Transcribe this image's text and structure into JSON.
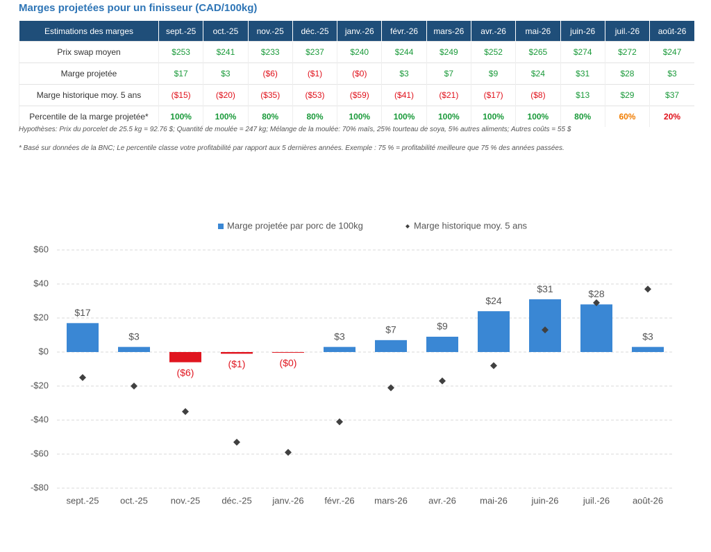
{
  "title": "Marges projetées pour un finisseur (CAD/100kg)",
  "table": {
    "header": [
      "Estimations des marges",
      "sept.-25",
      "oct.-25",
      "nov.-25",
      "déc.-25",
      "janv.-26",
      "févr.-26",
      "mars-26",
      "avr.-26",
      "mai-26",
      "juin-26",
      "juil.-26",
      "août-26"
    ],
    "rows": [
      {
        "label": "Prix swap moyen",
        "cells": [
          "$253",
          "$241",
          "$233",
          "$237",
          "$240",
          "$244",
          "$249",
          "$252",
          "$265",
          "$274",
          "$272",
          "$247"
        ],
        "colors": [
          "#1a9a3a",
          "#1a9a3a",
          "#1a9a3a",
          "#1a9a3a",
          "#1a9a3a",
          "#1a9a3a",
          "#1a9a3a",
          "#1a9a3a",
          "#1a9a3a",
          "#1a9a3a",
          "#1a9a3a",
          "#1a9a3a"
        ]
      },
      {
        "label": "Marge projetée",
        "cells": [
          "$17",
          "$3",
          "($6)",
          "($1)",
          "($0)",
          "$3",
          "$7",
          "$9",
          "$24",
          "$31",
          "$28",
          "$3"
        ],
        "colors": [
          "#1a9a3a",
          "#1a9a3a",
          "#e0101a",
          "#e0101a",
          "#e0101a",
          "#1a9a3a",
          "#1a9a3a",
          "#1a9a3a",
          "#1a9a3a",
          "#1a9a3a",
          "#1a9a3a",
          "#1a9a3a"
        ]
      },
      {
        "label": "Marge historique moy. 5 ans",
        "cells": [
          "($15)",
          "($20)",
          "($35)",
          "($53)",
          "($59)",
          "($41)",
          "($21)",
          "($17)",
          "($8)",
          "$13",
          "$29",
          "$37"
        ],
        "colors": [
          "#e0101a",
          "#e0101a",
          "#e0101a",
          "#e0101a",
          "#e0101a",
          "#e0101a",
          "#e0101a",
          "#e0101a",
          "#e0101a",
          "#1a9a3a",
          "#1a9a3a",
          "#1a9a3a"
        ]
      },
      {
        "label": "Percentile de la marge projetée*",
        "cells": [
          "100%",
          "100%",
          "80%",
          "80%",
          "100%",
          "100%",
          "100%",
          "100%",
          "100%",
          "80%",
          "60%",
          "20%"
        ],
        "colors": [
          "#1a9a3a",
          "#1a9a3a",
          "#1a9a3a",
          "#1a9a3a",
          "#1a9a3a",
          "#1a9a3a",
          "#1a9a3a",
          "#1a9a3a",
          "#1a9a3a",
          "#1a9a3a",
          "#f07c00",
          "#e0101a"
        ]
      }
    ]
  },
  "notes": [
    "Hypothèses: Prix du porcelet de 25.5 kg = 92.76 $; Quantité de moulée = 247 kg; Mélange de la moulée: 70% maïs, 25% tourteau de soya, 5% autres aliments; Autres coûts = 55 $",
    "* Basé sur données de la BNC; Le percentile classe votre profitabilité par rapport aux 5 dernières années. Exemple : 75 % = profitabilité meilleure que 75 % des années passées."
  ],
  "chart_data": {
    "type": "bar",
    "categories": [
      "sept.-25",
      "oct.-25",
      "nov.-25",
      "déc.-25",
      "janv.-26",
      "févr.-26",
      "mars-26",
      "avr.-26",
      "mai-26",
      "juin-26",
      "juil.-26",
      "août-26"
    ],
    "series": [
      {
        "name": "Marge projetée par porc de 100kg",
        "type": "bar",
        "color": "#3a87d4",
        "negative_color": "#e0151f",
        "values": [
          17,
          3,
          -6,
          -1,
          -0.4,
          3,
          7,
          9,
          24,
          31,
          28,
          3
        ],
        "value_labels": [
          "$17",
          "$3",
          "($6)",
          "($1)",
          "($0)",
          "$3",
          "$7",
          "$9",
          "$24",
          "$31",
          "$28",
          "$3"
        ]
      },
      {
        "name": "Marge historique moy. 5 ans",
        "type": "scatter",
        "color": "#404040",
        "values": [
          -15,
          -20,
          -35,
          -53,
          -59,
          -41,
          -21,
          -17,
          -8,
          13,
          29,
          37
        ]
      }
    ],
    "ylim": [
      -80,
      60
    ],
    "yticks": [
      {
        "value": -80,
        "label": "-$80"
      },
      {
        "value": -60,
        "label": "-$60"
      },
      {
        "value": -40,
        "label": "-$40"
      },
      {
        "value": -20,
        "label": "-$20"
      },
      {
        "value": 0,
        "label": "$0"
      },
      {
        "value": 20,
        "label": "$20"
      },
      {
        "value": 40,
        "label": "$40"
      },
      {
        "value": 60,
        "label": "$60"
      }
    ],
    "grid": true,
    "legend": "top"
  }
}
